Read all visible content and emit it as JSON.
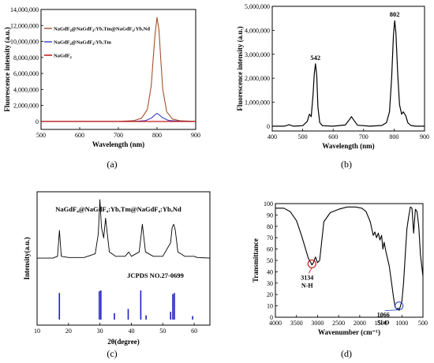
{
  "panels": {
    "a": {
      "caption": "(a)"
    },
    "b": {
      "caption": "(b)"
    },
    "c": {
      "caption": "(c)"
    },
    "d": {
      "caption": "(d)"
    }
  },
  "chart_data": [
    {
      "type": "line",
      "xlabel": "Wavelength (nm)",
      "ylabel": "Fluorescence intensity  (a.u.)",
      "xlim": [
        500,
        900
      ],
      "ylim": [
        -1000000,
        14000000
      ],
      "xticks": [
        500,
        600,
        700,
        800,
        900
      ],
      "yticks": [
        0,
        2000000,
        4000000,
        6000000,
        8000000,
        10000000,
        12000000,
        14000000
      ],
      "ytick_labels": [
        "0",
        "2,000,000",
        "4,000,000",
        "6,000,000",
        "8,000,000",
        "10,000,000",
        "12,000,000",
        "14,000,000"
      ],
      "legend": "top-left",
      "series": [
        {
          "name": "NaGdF₄@NaGdF₄:Yb,Tm@NaGdF₄:Yb,Nd",
          "color": "#a0522d",
          "x": [
            500,
            700,
            740,
            760,
            775,
            785,
            790,
            795,
            800,
            805,
            810,
            815,
            825,
            840,
            860,
            900
          ],
          "y": [
            0,
            0,
            100000,
            400000,
            1500000,
            4500000,
            7800000,
            11000000,
            13000000,
            11500000,
            7500000,
            4000000,
            1200000,
            300000,
            80000,
            0
          ]
        },
        {
          "name": "NaGdF₄@NaGdF₄:Yb,Tm",
          "color": "#3f3fbf",
          "x": [
            500,
            740,
            770,
            785,
            795,
            800,
            805,
            815,
            830,
            860,
            900
          ],
          "y": [
            0,
            0,
            100000,
            400000,
            850000,
            1000000,
            850000,
            450000,
            120000,
            20000,
            0
          ]
        },
        {
          "name": "NaGdF₄",
          "color": "#c00000",
          "x": [
            500,
            900
          ],
          "y": [
            0,
            0
          ]
        }
      ]
    },
    {
      "type": "line",
      "xlabel": "Wavelength (nm)",
      "ylabel": "Fluorescence intensity (a.u.)",
      "xlim": [
        400,
        900
      ],
      "ylim": [
        -200000,
        5000000
      ],
      "xticks": [
        400,
        500,
        600,
        700,
        800,
        900
      ],
      "yticks": [
        0,
        1000000,
        2000000,
        3000000,
        4000000,
        5000000
      ],
      "ytick_labels": [
        "0",
        "1,000,000",
        "2,000,000",
        "3,000,000",
        "4,000,000",
        "5,000,000"
      ],
      "annotations": [
        {
          "text": "542",
          "x": 542,
          "y": 2600000
        },
        {
          "text": "802",
          "x": 802,
          "y": 4400000
        }
      ],
      "series": [
        {
          "color": "#000000",
          "x": [
            400,
            440,
            455,
            470,
            500,
            515,
            522,
            528,
            534,
            538,
            542,
            546,
            550,
            556,
            565,
            600,
            640,
            652,
            660,
            668,
            680,
            720,
            760,
            775,
            785,
            792,
            798,
            802,
            806,
            812,
            818,
            825,
            830,
            838,
            845,
            855,
            870,
            900
          ],
          "y": [
            0,
            0,
            60000,
            0,
            20000,
            200000,
            500000,
            400000,
            1300000,
            2200000,
            2600000,
            2100000,
            800000,
            150000,
            20000,
            0,
            50000,
            250000,
            400000,
            250000,
            40000,
            0,
            30000,
            150000,
            600000,
            2000000,
            3800000,
            4400000,
            3900000,
            2200000,
            900000,
            500000,
            600000,
            450000,
            150000,
            30000,
            0,
            0
          ]
        }
      ]
    },
    {
      "type": "line",
      "xlabel": "2θ(degree)",
      "ylabel": "Intensity(a.u.)",
      "xlim": [
        10,
        65
      ],
      "xticks": [
        10,
        20,
        30,
        40,
        50,
        60
      ],
      "label": "NaGdF₄@NaGdF₄:Yb,Tm@NaGdF₄:Yb,Nd",
      "reference_label": "JCPDS NO.27-0699",
      "pattern_x": [
        10,
        15,
        16.5,
        17.1,
        17.7,
        20,
        25,
        28.5,
        29.5,
        30.0,
        30.5,
        31.2,
        31.8,
        33,
        35,
        38,
        39.2,
        40,
        42.5,
        43.5,
        44.5,
        47,
        50,
        52.5,
        53.0,
        53.5,
        54.0,
        54.8,
        57,
        60,
        61,
        65
      ],
      "pattern_y": [
        0.05,
        0.05,
        0.08,
        0.5,
        0.08,
        0.06,
        0.06,
        0.12,
        0.45,
        1.0,
        0.55,
        0.38,
        0.7,
        0.15,
        0.08,
        0.08,
        0.15,
        0.08,
        0.15,
        0.6,
        0.15,
        0.08,
        0.08,
        0.3,
        0.55,
        0.6,
        0.5,
        0.15,
        0.08,
        0.08,
        0.06,
        0.05
      ],
      "reference_x": [
        17.1,
        29.8,
        30.3,
        34.6,
        39.0,
        43.0,
        44.7,
        52.5,
        53.2,
        53.7,
        59.5
      ],
      "reference_y": [
        0.75,
        0.8,
        0.82,
        0.18,
        0.3,
        0.82,
        0.12,
        0.22,
        0.72,
        0.75,
        0.1
      ]
    },
    {
      "type": "line",
      "xlabel": "Wavenumber (cm⁻¹)",
      "ylabel": "Transmittance",
      "xlim": [
        4000,
        500
      ],
      "ylim": [
        0,
        100
      ],
      "xticks": [
        4000,
        3500,
        3000,
        2500,
        2000,
        1500,
        1000,
        500
      ],
      "yticks": [
        0,
        10,
        20,
        30,
        40,
        50,
        60,
        70,
        80,
        90,
        100
      ],
      "annotations": [
        {
          "text": "3134",
          "sub": "N-H",
          "x": 3134,
          "y": 47,
          "color": "#c00000"
        },
        {
          "text": "1066",
          "sub": "Si-O",
          "x": 1066,
          "y": 10,
          "color": "#1f3fbf"
        }
      ],
      "series": [
        {
          "color": "#000000",
          "x": [
            4000,
            3800,
            3650,
            3500,
            3380,
            3300,
            3220,
            3160,
            3134,
            3100,
            3050,
            3000,
            2950,
            2850,
            2700,
            2500,
            2300,
            2100,
            1950,
            1850,
            1750,
            1680,
            1640,
            1600,
            1560,
            1520,
            1480,
            1450,
            1420,
            1380,
            1300,
            1250,
            1200,
            1160,
            1120,
            1090,
            1066,
            1040,
            1000,
            960,
            920,
            880,
            840,
            800,
            760,
            720,
            680,
            640,
            600,
            560,
            500
          ],
          "y": [
            96,
            96,
            93,
            85,
            72,
            62,
            52,
            48,
            46,
            48,
            53,
            48,
            50,
            84,
            92,
            95,
            97,
            97,
            96,
            93,
            84,
            72,
            75,
            70,
            74,
            68,
            72,
            60,
            66,
            58,
            45,
            32,
            18,
            9,
            7,
            8,
            6,
            9,
            14,
            30,
            55,
            78,
            88,
            97,
            96,
            74,
            95,
            93,
            80,
            55,
            36
          ]
        }
      ]
    }
  ]
}
